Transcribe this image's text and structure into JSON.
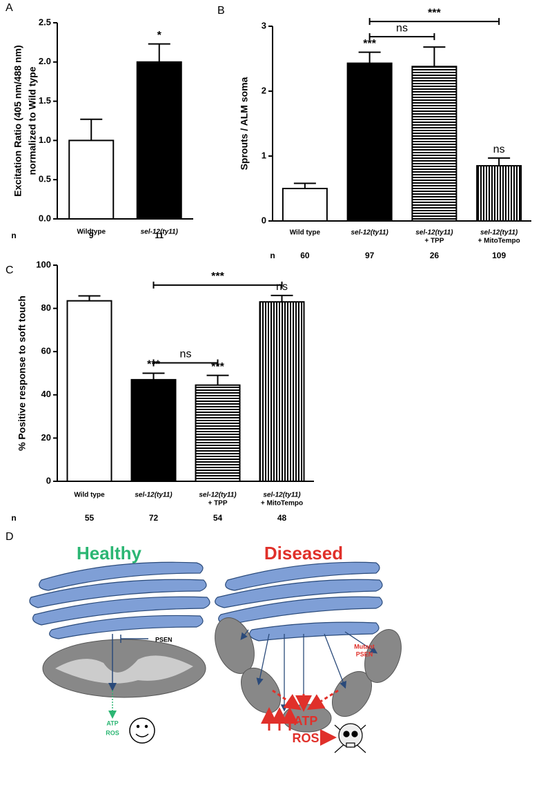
{
  "chart_data": [
    {
      "type": "bar",
      "panel_label": "A",
      "ylabel": [
        "Excitation Ratio (405 nm/488 nm)",
        "normalized to Wild type"
      ],
      "categories": [
        "Wildtype",
        "sel-12(ty11)"
      ],
      "category_sublabels": [
        null,
        null
      ],
      "values": [
        1.0,
        2.0
      ],
      "errors": [
        0.27,
        0.23
      ],
      "annotations": [
        null,
        "*"
      ],
      "fills": [
        "white",
        "black"
      ],
      "brackets": [],
      "n_label": "n",
      "n": [
        9,
        11
      ],
      "ylim": [
        0,
        2.5
      ],
      "yticks": [
        {
          "value": 0,
          "label": "0.0"
        },
        {
          "value": 0.5,
          "label": "0.5"
        },
        {
          "value": 1,
          "label": "1.0"
        },
        {
          "value": 1.5,
          "label": "1.5"
        },
        {
          "value": 2,
          "label": "2.0"
        },
        {
          "value": 2.5,
          "label": "2.5"
        }
      ]
    },
    {
      "type": "bar",
      "panel_label": "B",
      "ylabel": [
        "Sprouts / ALM soma"
      ],
      "categories": [
        "Wild type",
        "sel-12(ty11)",
        "sel-12(ty11)",
        "sel-12(ty11)"
      ],
      "category_sublabels": [
        null,
        null,
        "+ TPP",
        "+ MitoTempo"
      ],
      "values": [
        0.5,
        2.43,
        2.38,
        0.85
      ],
      "errors": [
        0.08,
        0.17,
        0.3,
        0.12
      ],
      "annotations": [
        null,
        "***",
        null,
        "ns"
      ],
      "fills": [
        "white",
        "black",
        "hstripes",
        "vstripes"
      ],
      "brackets": [
        {
          "from": 1,
          "to": 2,
          "label": "ns"
        },
        {
          "from": 1,
          "to": 3,
          "label": "***"
        }
      ],
      "n_label": "n",
      "n": [
        60,
        97,
        26,
        109
      ],
      "ylim": [
        0,
        3
      ],
      "yticks": [
        0,
        1,
        2,
        3
      ]
    },
    {
      "type": "bar",
      "panel_label": "C",
      "ylabel": [
        "% Positive response to soft touch"
      ],
      "categories": [
        "Wild type",
        "sel-12(ty11)",
        "sel-12(ty11)",
        "sel-12(ty11)"
      ],
      "category_sublabels": [
        null,
        null,
        "+ TPP",
        "+ MitoTempo"
      ],
      "values": [
        83.5,
        47,
        44.5,
        83
      ],
      "errors": [
        2.3,
        3,
        4.5,
        3
      ],
      "annotations": [
        null,
        "***",
        "***",
        "ns"
      ],
      "fills": [
        "white",
        "black",
        "hstripes",
        "vstripes"
      ],
      "brackets": [
        {
          "from": 1,
          "to": 2,
          "label": "ns"
        },
        {
          "from": 1,
          "to": 3,
          "label": "***"
        }
      ],
      "n_label": "n",
      "n": [
        55,
        72,
        54,
        48
      ],
      "ylim": [
        0,
        100
      ],
      "yticks": [
        0,
        20,
        40,
        60,
        80,
        100
      ]
    }
  ],
  "diagram": {
    "panel_label": "D",
    "healthy_title": "Healthy",
    "diseased_title": "Diseased",
    "psen": "PSEN",
    "mutant_psen": [
      "Mutant",
      "PSEN"
    ],
    "healthy_outputs": [
      "ATP",
      "ROS"
    ],
    "diseased_outputs": [
      "ATP",
      "ROS"
    ]
  }
}
